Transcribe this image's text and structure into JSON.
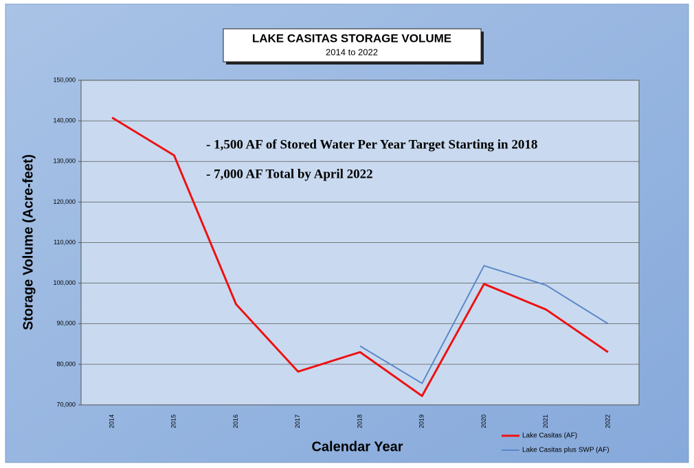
{
  "chart_data": {
    "type": "line",
    "title": "LAKE CASITAS STORAGE VOLUME",
    "subtitle": "2014 to 2022",
    "x_label": "Calendar Year",
    "y_label": "Storage Volume (Acre-feet)",
    "annotations": [
      "- 1,500 AF of Stored Water Per Year Target Starting in 2018",
      "- 7,000 AF Total by April 2022"
    ],
    "categories": [
      "2014",
      "2015",
      "2016",
      "2017",
      "2018",
      "2019",
      "2020",
      "2021",
      "2022"
    ],
    "series": [
      {
        "name": "Lake Casitas (AF)",
        "color": "#ee1111",
        "values": [
          140800,
          131500,
          94800,
          78200,
          83000,
          72200,
          99800,
          93500,
          83000
        ]
      },
      {
        "name": "Lake Casitas plus SWP (AF)",
        "color": "#5b87c8",
        "values": [
          null,
          null,
          null,
          null,
          84500,
          75300,
          104300,
          99500,
          90000
        ]
      }
    ],
    "ylim": [
      70000,
      150000
    ],
    "yticks": [
      {
        "value": 70000,
        "label": "70,000"
      },
      {
        "value": 80000,
        "label": "80,000"
      },
      {
        "value": 90000,
        "label": "90,000"
      },
      {
        "value": 100000,
        "label": "100,000"
      },
      {
        "value": 110000,
        "label": "110,000"
      },
      {
        "value": 120000,
        "label": "120,000"
      },
      {
        "value": 130000,
        "label": "130,000"
      },
      {
        "value": 140000,
        "label": "140,000"
      },
      {
        "value": 150000,
        "label": "150,000"
      }
    ],
    "grid": true,
    "legend": "lower right"
  }
}
